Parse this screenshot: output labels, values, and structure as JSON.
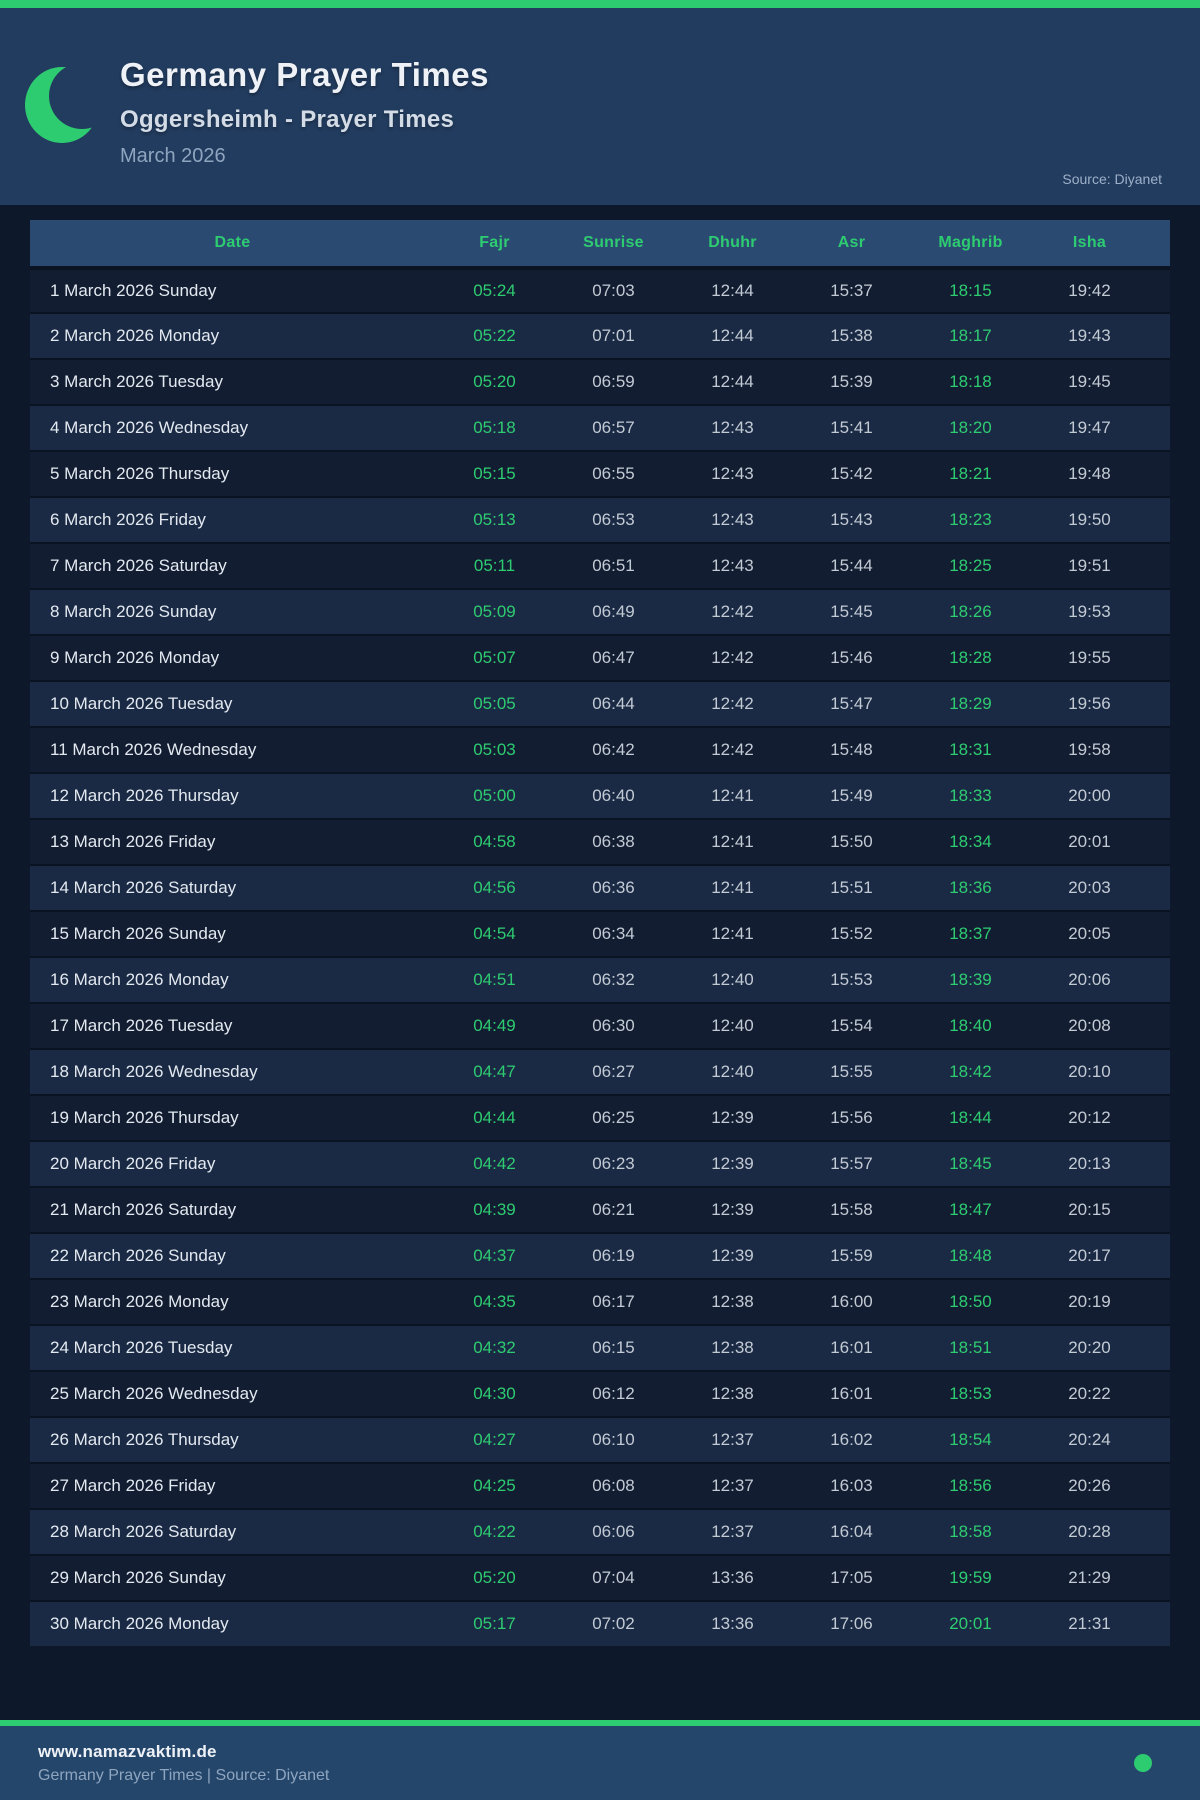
{
  "header": {
    "title": "Germany Prayer Times",
    "subtitle": "Oggersheimh - Prayer Times",
    "period": "March 2026",
    "source": "Source: Diyanet",
    "moon_icon": "crescent-moon-icon"
  },
  "colors": {
    "accent": "#2ecc71",
    "page-bg": "#0e182b",
    "header-bg": "#223c5f",
    "thead-bg": "#2a4a72",
    "row-odd": "#121d31",
    "row-even": "#1b2a44",
    "footer-bg": "#24466b"
  },
  "table": {
    "columns": [
      "Date",
      "Fajr",
      "Sunrise",
      "Dhuhr",
      "Asr",
      "Maghrib",
      "Isha"
    ],
    "rows": [
      [
        "1 March 2026 Sunday",
        "05:24",
        "07:03",
        "12:44",
        "15:37",
        "18:15",
        "19:42"
      ],
      [
        "2 March 2026 Monday",
        "05:22",
        "07:01",
        "12:44",
        "15:38",
        "18:17",
        "19:43"
      ],
      [
        "3 March 2026 Tuesday",
        "05:20",
        "06:59",
        "12:44",
        "15:39",
        "18:18",
        "19:45"
      ],
      [
        "4 March 2026 Wednesday",
        "05:18",
        "06:57",
        "12:43",
        "15:41",
        "18:20",
        "19:47"
      ],
      [
        "5 March 2026 Thursday",
        "05:15",
        "06:55",
        "12:43",
        "15:42",
        "18:21",
        "19:48"
      ],
      [
        "6 March 2026 Friday",
        "05:13",
        "06:53",
        "12:43",
        "15:43",
        "18:23",
        "19:50"
      ],
      [
        "7 March 2026 Saturday",
        "05:11",
        "06:51",
        "12:43",
        "15:44",
        "18:25",
        "19:51"
      ],
      [
        "8 March 2026 Sunday",
        "05:09",
        "06:49",
        "12:42",
        "15:45",
        "18:26",
        "19:53"
      ],
      [
        "9 March 2026 Monday",
        "05:07",
        "06:47",
        "12:42",
        "15:46",
        "18:28",
        "19:55"
      ],
      [
        "10 March 2026 Tuesday",
        "05:05",
        "06:44",
        "12:42",
        "15:47",
        "18:29",
        "19:56"
      ],
      [
        "11 March 2026 Wednesday",
        "05:03",
        "06:42",
        "12:42",
        "15:48",
        "18:31",
        "19:58"
      ],
      [
        "12 March 2026 Thursday",
        "05:00",
        "06:40",
        "12:41",
        "15:49",
        "18:33",
        "20:00"
      ],
      [
        "13 March 2026 Friday",
        "04:58",
        "06:38",
        "12:41",
        "15:50",
        "18:34",
        "20:01"
      ],
      [
        "14 March 2026 Saturday",
        "04:56",
        "06:36",
        "12:41",
        "15:51",
        "18:36",
        "20:03"
      ],
      [
        "15 March 2026 Sunday",
        "04:54",
        "06:34",
        "12:41",
        "15:52",
        "18:37",
        "20:05"
      ],
      [
        "16 March 2026 Monday",
        "04:51",
        "06:32",
        "12:40",
        "15:53",
        "18:39",
        "20:06"
      ],
      [
        "17 March 2026 Tuesday",
        "04:49",
        "06:30",
        "12:40",
        "15:54",
        "18:40",
        "20:08"
      ],
      [
        "18 March 2026 Wednesday",
        "04:47",
        "06:27",
        "12:40",
        "15:55",
        "18:42",
        "20:10"
      ],
      [
        "19 March 2026 Thursday",
        "04:44",
        "06:25",
        "12:39",
        "15:56",
        "18:44",
        "20:12"
      ],
      [
        "20 March 2026 Friday",
        "04:42",
        "06:23",
        "12:39",
        "15:57",
        "18:45",
        "20:13"
      ],
      [
        "21 March 2026 Saturday",
        "04:39",
        "06:21",
        "12:39",
        "15:58",
        "18:47",
        "20:15"
      ],
      [
        "22 March 2026 Sunday",
        "04:37",
        "06:19",
        "12:39",
        "15:59",
        "18:48",
        "20:17"
      ],
      [
        "23 March 2026 Monday",
        "04:35",
        "06:17",
        "12:38",
        "16:00",
        "18:50",
        "20:19"
      ],
      [
        "24 March 2026 Tuesday",
        "04:32",
        "06:15",
        "12:38",
        "16:01",
        "18:51",
        "20:20"
      ],
      [
        "25 March 2026 Wednesday",
        "04:30",
        "06:12",
        "12:38",
        "16:01",
        "18:53",
        "20:22"
      ],
      [
        "26 March 2026 Thursday",
        "04:27",
        "06:10",
        "12:37",
        "16:02",
        "18:54",
        "20:24"
      ],
      [
        "27 March 2026 Friday",
        "04:25",
        "06:08",
        "12:37",
        "16:03",
        "18:56",
        "20:26"
      ],
      [
        "28 March 2026 Saturday",
        "04:22",
        "06:06",
        "12:37",
        "16:04",
        "18:58",
        "20:28"
      ],
      [
        "29 March 2026 Sunday",
        "05:20",
        "07:04",
        "13:36",
        "17:05",
        "19:59",
        "21:29"
      ],
      [
        "30 March 2026 Monday",
        "05:17",
        "07:02",
        "13:36",
        "17:06",
        "20:01",
        "21:31"
      ]
    ]
  },
  "footer": {
    "website": "www.namazvaktim.de",
    "credit": "Germany Prayer Times | Source: Diyanet",
    "dot_icon": "green-dot"
  }
}
